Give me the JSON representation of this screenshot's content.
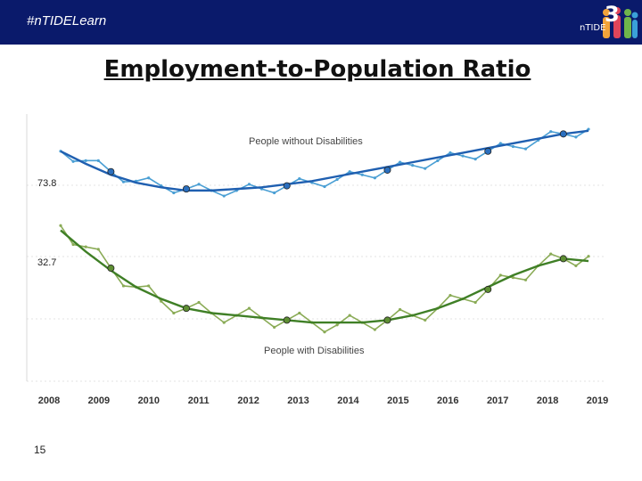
{
  "header": {
    "hashtag": "#nTIDELearn",
    "logo_text": "nTIDE",
    "logo_number": "3"
  },
  "slide": {
    "title": "Employment-to-Population Ratio",
    "number": "15"
  },
  "colors": {
    "header_bg": "#0a1a6b",
    "without_line": "#4a9fd4",
    "without_trend": "#1f5fb0",
    "with_line": "#8aab56",
    "with_trend": "#3f7f26"
  },
  "chart_data": {
    "type": "line",
    "title": "",
    "xlabel": "",
    "ylabel": "",
    "x_tick_labels": [
      "2008",
      "2009",
      "2010",
      "2011",
      "2012",
      "2013",
      "2014",
      "2015",
      "2016",
      "2017",
      "2018",
      "2019"
    ],
    "start_labels": [
      "73.8",
      "32.7"
    ],
    "series": [
      {
        "name": "People without Disabilities",
        "values": [
          73.8,
          73.2,
          72.5,
          71.9,
          71.6,
          71.4,
          71.3,
          71.3,
          71.4,
          71.6,
          71.8,
          72.0,
          72.3,
          72.6,
          72.9,
          73.2,
          73.5,
          73.8,
          74.1,
          74.5,
          74.9,
          75.2
        ],
        "trend": [
          73.8,
          73.0,
          72.3,
          71.8,
          71.5,
          71.3,
          71.3,
          71.4,
          71.5,
          71.7,
          71.9,
          72.2,
          72.5,
          72.8,
          73.1,
          73.4,
          73.7,
          74.0,
          74.3,
          74.6,
          74.9,
          75.1
        ]
      },
      {
        "name": "People with Disabilities",
        "values": [
          32.7,
          31.8,
          30.9,
          30.1,
          29.5,
          29.2,
          29.0,
          28.9,
          28.8,
          28.7,
          28.6,
          28.5,
          28.6,
          28.7,
          28.9,
          29.2,
          29.6,
          30.0,
          30.5,
          31.0,
          31.3,
          31.4
        ],
        "trend": [
          32.5,
          31.6,
          30.8,
          30.1,
          29.6,
          29.2,
          29.0,
          28.9,
          28.8,
          28.7,
          28.6,
          28.6,
          28.6,
          28.7,
          28.9,
          29.2,
          29.6,
          30.1,
          30.6,
          31.0,
          31.3,
          31.2
        ]
      }
    ]
  }
}
